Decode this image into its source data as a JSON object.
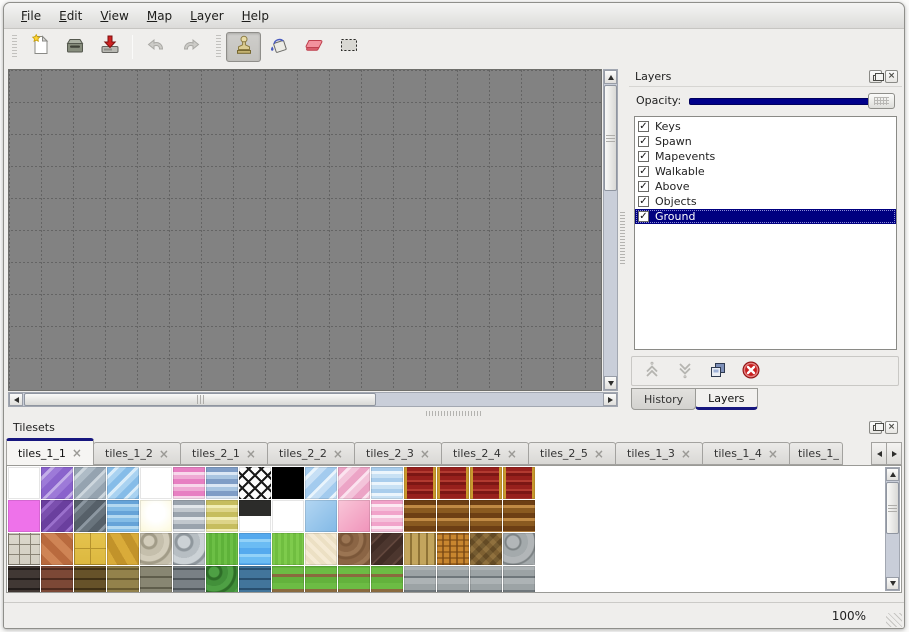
{
  "menubar": {
    "items": [
      {
        "label": "File"
      },
      {
        "label": "Edit"
      },
      {
        "label": "View"
      },
      {
        "label": "Map"
      },
      {
        "label": "Layer"
      },
      {
        "label": "Help"
      }
    ]
  },
  "toolbar": {
    "buttons": [
      {
        "name": "new-map-button",
        "icon": "new-file-icon",
        "active": false
      },
      {
        "name": "open-button",
        "icon": "open-drawer-icon",
        "active": false
      },
      {
        "name": "save-button",
        "icon": "save-download-icon",
        "active": false
      },
      {
        "name": "undo-button",
        "icon": "undo-arrow-icon",
        "active": false,
        "disabled": true
      },
      {
        "name": "redo-button",
        "icon": "redo-arrow-icon",
        "active": false,
        "disabled": true
      },
      {
        "name": "stamp-tool-button",
        "icon": "stamp-icon",
        "active": true
      },
      {
        "name": "fill-tool-button",
        "icon": "paint-bucket-icon",
        "active": false
      },
      {
        "name": "eraser-tool-button",
        "icon": "eraser-icon",
        "active": false
      },
      {
        "name": "select-tool-button",
        "icon": "selection-marquee-icon",
        "active": false
      }
    ]
  },
  "layers_panel": {
    "title": "Layers",
    "opacity_label": "Opacity:",
    "opacity_percent": 100,
    "layers": [
      {
        "label": "Keys",
        "checked": true,
        "selected": false
      },
      {
        "label": "Spawn",
        "checked": true,
        "selected": false
      },
      {
        "label": "Mapevents",
        "checked": true,
        "selected": false
      },
      {
        "label": "Walkable",
        "checked": true,
        "selected": false
      },
      {
        "label": "Above",
        "checked": true,
        "selected": false
      },
      {
        "label": "Objects",
        "checked": true,
        "selected": false
      },
      {
        "label": "Ground",
        "checked": true,
        "selected": true
      }
    ],
    "action_buttons": [
      "raise-layer-button",
      "lower-layer-button",
      "duplicate-layer-button",
      "delete-layer-button"
    ],
    "dock_tabs": [
      {
        "label": "History",
        "active": false
      },
      {
        "label": "Layers",
        "active": true
      }
    ]
  },
  "tilesets_panel": {
    "title": "Tilesets",
    "tabs": [
      {
        "label": "tiles_1_1",
        "active": true,
        "truncated": false
      },
      {
        "label": "tiles_1_2",
        "active": false,
        "truncated": false
      },
      {
        "label": "tiles_2_1",
        "active": false,
        "truncated": false
      },
      {
        "label": "tiles_2_2",
        "active": false,
        "truncated": false
      },
      {
        "label": "tiles_2_3",
        "active": false,
        "truncated": false
      },
      {
        "label": "tiles_2_4",
        "active": false,
        "truncated": false
      },
      {
        "label": "tiles_2_5",
        "active": false,
        "truncated": false
      },
      {
        "label": "tiles_1_3",
        "active": false,
        "truncated": false
      },
      {
        "label": "tiles_1_4",
        "active": false,
        "truncated": false
      },
      {
        "label": "tiles_1_",
        "active": false,
        "truncated": true
      }
    ],
    "tile_rows": [
      [
        "#ffffff",
        "repeating-linear-gradient(135deg,#8a63cc 0 7px,#c3aee8 7px 10px,#9d7ad8 10px 16px)",
        "repeating-linear-gradient(135deg,#95a3b0 0 7px,#cdd6dd 7px 10px,#aebbc6 10px 16px)",
        "repeating-linear-gradient(135deg,#86bce8 0 6px,#d9ecf9 6px 9px,#a9d2f1 9px 14px)",
        "radial-gradient(circle at 50% 50%,#ffffff 25%,#fdf9cf 70%,#f6edа6 100%)",
        "repeating-linear-gradient(180deg,#e77fc2 0 5px,#f8d7eb 5px 8px,#efa9d4 8px 12px)",
        "repeating-linear-gradient(180deg,#7f9dc6 0 5px,#dbe7f4 5px 8px,#a9c5e1 8px 12px)",
        "repeating-linear-gradient(45deg,#1a1a1a 0 2px,rgba(0,0,0,0) 2px 9px),repeating-linear-gradient(-45deg,#1a1a1a 0 2px,rgba(0,0,0,0) 2px 9px),linear-gradient(#fcfcfc,#fcfcfc)",
        "#000000",
        "repeating-linear-gradient(135deg,#a3cbee 0 7px,#e9f4fc 7px 10px,#c6dff5 10px 16px)",
        "repeating-linear-gradient(135deg,#eca4c6 0 7px,#fbe3ef 7px 10px,#f3c4da 10px 16px)",
        "repeating-linear-gradient(180deg,#a9cdec 0 4px,#ebf5fc 4px 7px,#c8e1f4 7px 11px)",
        "linear-gradient(90deg,#c9992e 0 3px,rgba(0,0,0,0) 3px 29px,#c9992e 29px 32px),repeating-linear-gradient(180deg,#97201c 0 4px,#b23a30 4px 6px,#7c1714 6px 9px)",
        "linear-gradient(90deg,#c9992e 0 3px,rgba(0,0,0,0) 3px 29px,#c9992e 29px 32px),repeating-linear-gradient(180deg,#97201c 0 4px,#b23a30 4px 6px,#7c1714 6px 9px)",
        "linear-gradient(90deg,#c9992e 0 3px,rgba(0,0,0,0) 3px 29px,#c9992e 29px 32px),repeating-linear-gradient(180deg,#97201c 0 4px,#b23a30 4px 6px,#7c1714 6px 9px)",
        "linear-gradient(90deg,#c9992e 0 3px,rgba(0,0,0,0) 3px 29px,#c9992e 29px 32px),repeating-linear-gradient(180deg,#97201c 0 4px,#b23a30 4px 6px,#7c1714 6px 9px)"
      ],
      [
        "#ee72ea",
        "repeating-linear-gradient(135deg,#6a3f9e 0 7px,#9a70cc 7px 10px,#7b4fae 10px 16px)",
        "repeating-linear-gradient(135deg,#566069 0 7px,#8c97a1 7px 10px,#69747d 10px 16px)",
        "repeating-linear-gradient(180deg,#66a3d8 0 4px,#b3d8f0 4px 7px,#84bce6 7px 11px)",
        "radial-gradient(circle at 50% 40%,#ffffff 35%,#fcf8d8 100%)",
        "repeating-linear-gradient(180deg,#9aa3ad 0 5px,#e2e6ea 5px 8px,#c2c8ce 8px 12px)",
        "repeating-linear-gradient(180deg,#c6bd5e 0 5px,#f1edb4 5px 8px,#ddd489 8px 12px)",
        "linear-gradient(180deg,#2c2c2a 0 16px,#ffffff 16px)",
        "#ffffff",
        "linear-gradient(135deg,#b3d6f2,#82b9e6)",
        "linear-gradient(135deg,#f9c6d8,#f093ba)",
        "repeating-linear-gradient(180deg,#f1a3ca 0 4px,#fce8f2 4px 7px,#f5c0da 7px 11px)",
        "repeating-linear-gradient(180deg,#6d3f14 0 5px,#c08a44 5px 8px,#8a5a20 8px 13px)",
        "repeating-linear-gradient(180deg,#6d3f14 0 5px,#c08a44 5px 8px,#8a5a20 8px 13px)",
        "repeating-linear-gradient(180deg,#6d3f14 0 5px,#c08a44 5px 8px,#8a5a20 8px 13px)",
        "repeating-linear-gradient(180deg,#6d3f14 0 5px,#c08a44 5px 8px,#8a5a20 8px 13px)"
      ],
      [
        "repeating-linear-gradient(0deg,rgba(130,124,110,.9) 0 1px,rgba(0,0,0,0) 1px 10px),repeating-linear-gradient(90deg,rgba(130,124,110,.9) 0 1px,rgba(0,0,0,0) 1px 11px),linear-gradient(#dcd8cc,#d2cec2)",
        "repeating-linear-gradient(45deg,#b96a3e 0 8px,#cf8455 8px 16px)",
        "repeating-linear-gradient(0deg,#b5922c 0 1px,rgba(0,0,0,0) 1px 16px),repeating-linear-gradient(90deg,#b5922c 0 1px,rgba(0,0,0,0) 1px 16px),linear-gradient(#e5c34e,#dcb83f)",
        "repeating-linear-gradient(60deg,#d9ab39 0 9px,#c2932a 9px 18px)",
        "repeating-radial-gradient(circle at 9px 8px,#d3cdbb 0 5px,#a29c88 6px 8px,#c5bfac 9px 15px)",
        "repeating-radial-gradient(circle at 11px 9px,#ccd2d6 0 6px,#8f979d 7px 9px,#b7bec3 10px 16px)",
        "repeating-linear-gradient(90deg,#6cbf45 0 3px,#5eb239 3px 6px)",
        "repeating-linear-gradient(180deg,#55aaee 0 6px,#92d2f8 6px 9px,#6bbcf3 9px 15px)",
        "repeating-linear-gradient(90deg,#7ecb4c 0 3px,#70be40 3px 6px)",
        "repeating-linear-gradient(45deg,#f5ead4 0 4px,#ece0c4 4px 8px)",
        "repeating-radial-gradient(circle at 8px 6px,#9b7553 0 4px,#7b5739 5px 7px,#8b6545 8px 13px)",
        "repeating-linear-gradient(135deg,#4c362e 0 7px,#61463c 7px 9px,#402c25 9px 15px)",
        "repeating-linear-gradient(90deg,#c3a55d 0 6px,#8f7336 6px 8px)",
        "repeating-linear-gradient(0deg,rgba(120,70,15,.55) 0 2px,rgba(0,0,0,0) 2px 6px),repeating-linear-gradient(90deg,#c8862f 0 5px,#8f5a1e 5px 7px)",
        "repeating-linear-gradient(-45deg,rgba(130,100,55,.45) 0 5px,rgba(70,52,26,.45) 5px 10px),repeating-linear-gradient(45deg,#9c7c44 0 5px,#7c5e2e 5px 10px)",
        "repeating-radial-gradient(circle at 10px 9px,#b2b6b8 0 6px,#7e8486 7px 8px,#a4aaac 9px 15px)"
      ],
      [
        "repeating-linear-gradient(0deg,#413834 0 8px,#221c1a 8px 10px)",
        "repeating-linear-gradient(0deg,#7c4836 0 8px,#4e2a1e 8px 10px)",
        "repeating-linear-gradient(0deg,#675229 0 8px,#403015 8px 10px)",
        "repeating-linear-gradient(0deg,#93824b 0 8px,#685a2f 8px 10px)",
        "repeating-linear-gradient(0deg,#888672 0 9px,#5f5d4b 9px 11px)",
        "repeating-linear-gradient(0deg,#798085 0 8px,#4f565b 8px 10px)",
        "repeating-radial-gradient(circle at 8px 6px,#4ea044 0 5px,#2e6e28 6px 8px,#42903a 9px 14px)",
        "repeating-linear-gradient(0deg,#42759b 0 8px,#284f6f 8px 10px)",
        "repeating-linear-gradient(0deg,#63b23c 0 6px,#8a6a3e 6px 9px,#6cbc44 9px 15px)",
        "repeating-linear-gradient(0deg,#63b23c 0 6px,#8a6a3e 6px 9px,#6cbc44 9px 15px)",
        "repeating-linear-gradient(0deg,#63b23c 0 6px,#8a6a3e 6px 9px,#6cbc44 9px 15px)",
        "repeating-linear-gradient(0deg,#63b23c 0 6px,#8a6a3e 6px 9px,#6cbc44 9px 15px)",
        "repeating-linear-gradient(0deg,#adb3b5 0 6px,#6f777b 6px 8px,#9ca3a5 8px 14px)",
        "repeating-linear-gradient(0deg,#adb3b5 0 6px,#6f777b 6px 8px,#9ca3a5 8px 14px)",
        "repeating-linear-gradient(0deg,#adb3b5 0 6px,#6f777b 6px 8px,#9ca3a5 8px 14px)",
        "repeating-linear-gradient(0deg,#adb3b5 0 6px,#6f777b 6px 8px,#9ca3a5 8px 14px)"
      ]
    ]
  },
  "statusbar": {
    "zoom_level": "100%"
  },
  "icons": {
    "check": "✓",
    "close": "×"
  },
  "colors": {
    "selection_navy": "#000080",
    "slider_navy": "#00008a",
    "tab_accent": "#16167e",
    "canvas_gray": "#828282"
  }
}
